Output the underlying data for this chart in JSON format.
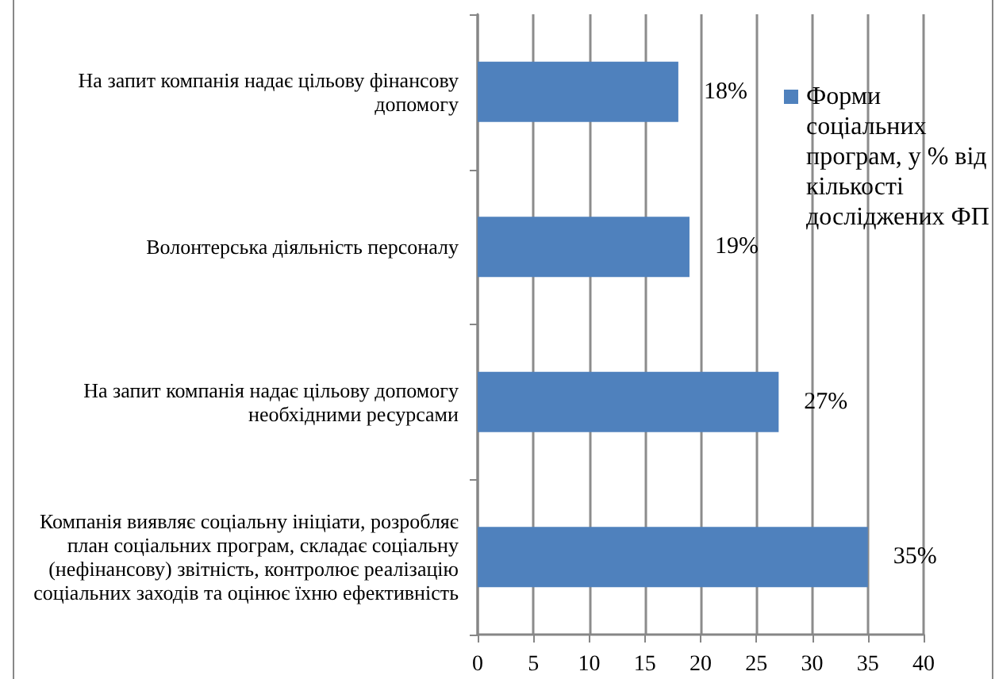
{
  "chart_data": {
    "type": "bar",
    "orientation": "horizontal",
    "categories": [
      "На запит компанія надає цільову фінансову допомогу",
      "Волонтерська діяльність персоналу",
      "На запит компанія надає цільову допомогу необхідними ресурсами",
      "Компанія виявляє соціальну ініціати, розробляє план соціальних програм, складає соціальну (нефінансову) звітність, контролює реалізацію соціальних заходів та оцінює їхню ефективність"
    ],
    "series": [
      {
        "name": "Форми соціальних програм, у % від кількості досліджених ФП",
        "color": "#4f81bd",
        "values": [
          18,
          19,
          27,
          35
        ],
        "value_labels": [
          "18%",
          "19%",
          "27%",
          "35%"
        ]
      }
    ],
    "xlim": [
      0,
      40
    ],
    "xticks": [
      0,
      5,
      10,
      15,
      20,
      25,
      30,
      35,
      40
    ],
    "grid": "x",
    "legend": "top right"
  }
}
